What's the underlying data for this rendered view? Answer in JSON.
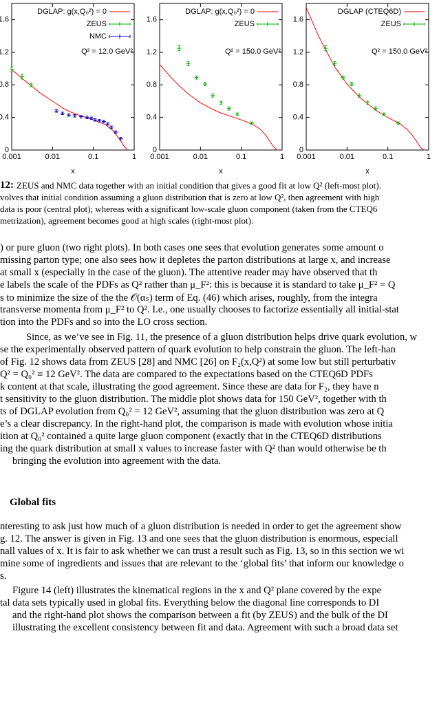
{
  "chart_data": [
    {
      "type": "line",
      "xlabel": "x",
      "xlog": true,
      "xlim": [
        0.001,
        1
      ],
      "xticks": [
        0.001,
        0.01,
        0.1,
        1
      ],
      "ylim": [
        0,
        1.8
      ],
      "yticks": [
        0,
        0.4,
        0.8,
        1.2,
        1.6
      ],
      "legend": "upper right",
      "annotation": "Q² = 12.0 GeV²",
      "series": [
        {
          "name": "DGLAP: g(x,Q₀²) = 0",
          "color": "#ff0000",
          "style": "line",
          "x": [
            0.001,
            0.002,
            0.003,
            0.005,
            0.01,
            0.02,
            0.03,
            0.05,
            0.1,
            0.2,
            0.3,
            0.4,
            0.5,
            0.6,
            0.7
          ],
          "values": [
            0.99,
            0.86,
            0.79,
            0.7,
            0.6,
            0.5,
            0.46,
            0.42,
            0.37,
            0.31,
            0.24,
            0.16,
            0.09,
            0.03,
            0
          ]
        },
        {
          "name": "ZEUS",
          "color": "#00b000",
          "style": "errorbar",
          "x": [
            0.001,
            0.0018,
            0.003
          ],
          "values": [
            0.99,
            0.9,
            0.8
          ],
          "errors": [
            0.03,
            0.03,
            0.02
          ]
        },
        {
          "name": "NMC",
          "color": "#0000c0",
          "style": "errorbar",
          "x": [
            0.0125,
            0.0175,
            0.025,
            0.035,
            0.05,
            0.07,
            0.09,
            0.11,
            0.14,
            0.18,
            0.225,
            0.275,
            0.35,
            0.47
          ],
          "values": [
            0.48,
            0.45,
            0.43,
            0.42,
            0.41,
            0.4,
            0.39,
            0.37,
            0.36,
            0.35,
            0.32,
            0.28,
            0.22,
            0.14
          ],
          "errors": [
            0.015,
            0.015,
            0.015,
            0.015,
            0.015,
            0.015,
            0.015,
            0.015,
            0.015,
            0.015,
            0.015,
            0.015,
            0.015,
            0.015
          ]
        }
      ]
    },
    {
      "type": "line",
      "xlabel": "x",
      "xlog": true,
      "xlim": [
        0.001,
        1
      ],
      "xticks": [
        0.001,
        0.01,
        0.1,
        1
      ],
      "ylim": [
        0,
        1.8
      ],
      "yticks": [
        0,
        0.4,
        0.8,
        1.2,
        1.6
      ],
      "legend": "upper right",
      "annotation": "Q² = 150.0 GeV²",
      "series": [
        {
          "name": "DGLAP: g(x,Q₀²) = 0",
          "color": "#ff0000",
          "style": "line",
          "x": [
            0.001,
            0.002,
            0.003,
            0.005,
            0.01,
            0.02,
            0.03,
            0.05,
            0.1,
            0.2,
            0.3,
            0.4,
            0.5,
            0.6,
            0.7,
            0.8
          ],
          "values": [
            1.05,
            0.88,
            0.79,
            0.69,
            0.58,
            0.5,
            0.46,
            0.42,
            0.37,
            0.31,
            0.25,
            0.18,
            0.11,
            0.05,
            0.01,
            0
          ]
        },
        {
          "name": "ZEUS",
          "color": "#00b000",
          "style": "errorbar",
          "x": [
            0.003,
            0.005,
            0.008,
            0.013,
            0.02,
            0.032,
            0.05,
            0.08,
            0.18
          ],
          "values": [
            1.25,
            1.06,
            0.89,
            0.81,
            0.67,
            0.58,
            0.51,
            0.44,
            0.33
          ],
          "errors": [
            0.03,
            0.025,
            0.02,
            0.02,
            0.02,
            0.02,
            0.02,
            0.015,
            0.015
          ]
        }
      ]
    },
    {
      "type": "line",
      "xlabel": "x",
      "xlog": true,
      "xlim": [
        0.001,
        1
      ],
      "xticks": [
        0.001,
        0.01,
        0.1,
        1
      ],
      "ylim": [
        0,
        1.8
      ],
      "yticks": [
        0,
        0.4,
        0.8,
        1.2,
        1.6
      ],
      "legend": "upper right",
      "annotation": "Q² = 150.0 GeV²",
      "series": [
        {
          "name": "DGLAP (CTEQ6D)",
          "color": "#ff0000",
          "style": "line",
          "x": [
            0.001,
            0.002,
            0.003,
            0.005,
            0.01,
            0.02,
            0.03,
            0.05,
            0.1,
            0.2,
            0.3,
            0.4,
            0.5,
            0.6,
            0.7,
            0.8
          ],
          "values": [
            1.75,
            1.4,
            1.23,
            1.02,
            0.81,
            0.65,
            0.58,
            0.49,
            0.4,
            0.32,
            0.25,
            0.18,
            0.11,
            0.05,
            0.01,
            0
          ]
        },
        {
          "name": "ZEUS",
          "color": "#00b000",
          "style": "errorbar",
          "x": [
            0.003,
            0.005,
            0.008,
            0.013,
            0.02,
            0.032,
            0.05,
            0.08,
            0.18
          ],
          "values": [
            1.25,
            1.06,
            0.89,
            0.81,
            0.67,
            0.58,
            0.51,
            0.44,
            0.33
          ],
          "errors": [
            0.03,
            0.025,
            0.02,
            0.02,
            0.02,
            0.02,
            0.02,
            0.015,
            0.015
          ]
        }
      ]
    }
  ],
  "caption": {
    "label": "12:",
    "lines": [
      "ZEUS and NMC data together with an initial condition that gives a good fit at low Q² (left-most plot).",
      "volves that initial condition assuming a gluon distribution that is zero at low Q², then agreement with high",
      "data is poor (central plot); whereas with a significant low-scale gluon component (taken from the CTEQ6",
      "metrization), agreement becomes good at high scales (right-most plot)."
    ]
  },
  "body": [
    ") or pure gluon (two right plots).  In both cases one sees that evolution generates some amount o",
    "missing parton type; one also sees how it depletes the parton distributions at large x, and increase",
    "at small x (especially in the case of the gluon).  The attentive reader may have observed that th",
    "e labels the scale of the PDFs as Q² rather than μ_F²: this is because it is standard to take μ_F² = Q",
    "s to minimize the size of the the 𝒪(αₛ) term of Eq. (46) which arises, roughly, from the integra",
    "transverse momenta from μ_F² to Q². I.e., one usually chooses to factorize essentially all initial-stat",
    "tion into the PDFs and so into the LO cross section.",
    "Since, as we’ve see in Fig. 11, the presence of a gluon distribution helps drive quark evolution, w",
    "se the experimentally observed pattern of quark evolution to help constrain the gluon. The left-han",
    "of Fig. 12 shows data from ZEUS [28] and NMC [26] on F₂(x,Q²) at some low but still perturbativ",
    "Q² = Q₀² ≡ 12 GeV².  The data are compared to the expectations based on the CTEQ6D PDFs",
    "k content at that scale, illustrating the good agreement.  Since these are data for F₂, they have n",
    "t sensitivity to the gluon distribution. The middle plot shows data for 150 GeV², together with th",
    "ts of DGLAP evolution from Q₀² = 12 GeV², assuming that the gluon distribution was zero at Q",
    "e’s a clear discrepancy. In the right-hand plot, the comparison is made with evolution whose initia",
    "ition at Q₀² contained a quite large gluon component (exactly that in the CTEQ6D distributions",
    "ing the quark distribution at small x values to increase faster with Q² than would otherwise be th",
    "bringing the evolution into agreement with the data."
  ],
  "heading": "Global fits",
  "body2": [
    "nteresting to ask just how much of a gluon distribution is needed in order to get the agreement show",
    "g. 12. The answer is given in Fig. 13 and one sees that the gluon distribution is enormous, especiall",
    "nall values of x. It is fair to ask whether we can trust a result such as Fig. 13, so in this section we wi",
    "mine some of ingredients and issues that are relevant to the ‘global fits’ that inform our knowledge o",
    "s.",
    "Figure 14 (left) illustrates the kinematical regions in the x and Q² plane covered by the expe",
    "tal data sets typically used in global fits.  Everything below the diagonal line corresponds to DI",
    "and the right-hand plot shows the comparison between a fit (by ZEUS) and the bulk of the DI",
    "illustrating the excellent consistency between fit and data. Agreement with such a broad data set"
  ]
}
